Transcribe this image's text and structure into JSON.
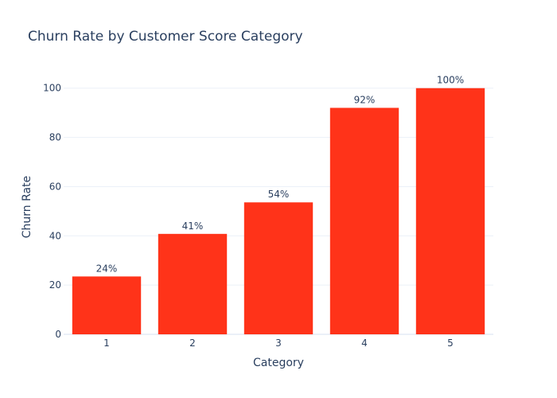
{
  "chart_data": {
    "type": "bar",
    "title": "Churn Rate by Customer Score Category",
    "xlabel": "Category",
    "ylabel": "Churn Rate",
    "categories": [
      "1",
      "2",
      "3",
      "4",
      "5"
    ],
    "values": [
      23.5,
      40.8,
      53.6,
      92.0,
      100.0
    ],
    "data_labels": [
      "24%",
      "41%",
      "54%",
      "92%",
      "100%"
    ],
    "ylim": [
      0,
      108
    ],
    "yticks": [
      0,
      20,
      40,
      60,
      80,
      100
    ],
    "ytick_labels": [
      "0",
      "20",
      "40",
      "60",
      "80",
      "100"
    ],
    "grid": true,
    "bar_color": "#ff3319",
    "grid_color": "#ebf0f8",
    "text_color": "#2a3f5f"
  }
}
